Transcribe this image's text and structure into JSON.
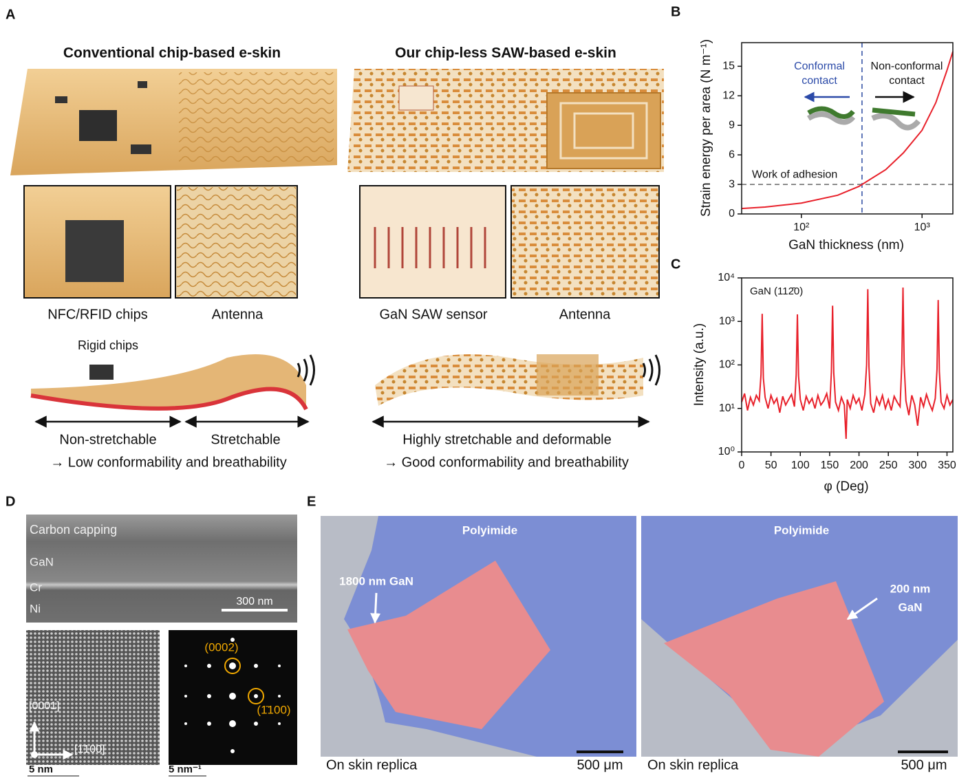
{
  "panel_a": {
    "label": "A",
    "left_title": "Conventional chip-based e-skin",
    "right_title": "Our chip-less SAW-based e-skin",
    "insets": [
      "NFC/RFID chips",
      "Antenna",
      "GaN SAW sensor",
      "Antenna"
    ],
    "rigid_chips": "Rigid chips",
    "left_span": [
      "Non-stretchable",
      "Stretchable"
    ],
    "left_note": "→ Low conformability and breathability",
    "right_span": "Highly stretchable and deformable",
    "right_note": "→ Good conformability and breathability"
  },
  "panel_d": {
    "label": "D",
    "layers": [
      "Carbon capping",
      "GaN",
      "Cr",
      "Ni"
    ],
    "tem_scale": "300 nm",
    "directions": [
      "[0001]",
      "[1̄100]"
    ],
    "hrtem_scale": "5 nm",
    "spots": [
      "(0002)",
      "(1̄100)"
    ],
    "diffraction_scale": "5 nm⁻¹"
  },
  "panel_e": {
    "label": "E",
    "images": [
      {
        "region": "Polyimide",
        "gan": [
          "1800 nm GaN"
        ],
        "substrate": "On skin replica",
        "scale": "500 μm"
      },
      {
        "region": "Polyimide",
        "gan": [
          "200 nm",
          "GaN"
        ],
        "substrate": "On skin replica",
        "scale": "500 μm"
      }
    ]
  },
  "chart_data": [
    {
      "type": "line",
      "label": "B",
      "x_label": "GaN thickness (nm)",
      "y_label": "Strain energy per area (N m⁻¹)",
      "xlog": true,
      "ylog": false,
      "xlim": [
        32,
        1800
      ],
      "ylim": [
        0,
        17.4
      ],
      "xticks": [
        {
          "value": 100,
          "label": "10²"
        },
        {
          "value": 1000,
          "label": "10³"
        }
      ],
      "yticks": [
        0,
        3,
        6,
        9,
        12,
        15
      ],
      "x": [
        32,
        50,
        100,
        200,
        300,
        500,
        700,
        1000,
        1300,
        1600,
        1800
      ],
      "values": [
        0.55,
        0.7,
        1.1,
        1.9,
        2.8,
        4.5,
        6.2,
        8.5,
        11.3,
        14.5,
        16.5
      ],
      "color": "#e8202a",
      "hlines": [
        {
          "value": 3,
          "label": "Work of adhesion",
          "color": "#666666"
        }
      ],
      "vlines": [
        {
          "value": 318,
          "color": "#2a4aa0"
        }
      ],
      "annotations": [
        {
          "text": [
            "Conformal",
            "contact"
          ],
          "color": "#2b4aa8"
        },
        {
          "text": [
            "Non-conformal",
            "contact"
          ],
          "color": "#111111"
        }
      ]
    },
    {
      "type": "line",
      "label": "C",
      "x_label": "φ (Deg)",
      "y_label": "Intensity (a.u.)",
      "legend": "GaN (112̄0)",
      "xlog": false,
      "ylog": true,
      "xlim": [
        0,
        360
      ],
      "ylim": [
        1,
        10000
      ],
      "xticks": [
        0,
        50,
        100,
        150,
        200,
        250,
        300,
        350
      ],
      "yticks": [
        {
          "value": 1,
          "label": "10⁰"
        },
        {
          "value": 10,
          "label": "10¹"
        },
        {
          "value": 100,
          "label": "10²"
        },
        {
          "value": 1000,
          "label": "10³"
        },
        {
          "value": 10000,
          "label": "10⁴"
        }
      ],
      "x": [
        0,
        5,
        10,
        15,
        20,
        25,
        30,
        33,
        35,
        37,
        40,
        45,
        50,
        55,
        60,
        65,
        70,
        75,
        80,
        85,
        90,
        93,
        95,
        97,
        100,
        105,
        110,
        115,
        120,
        125,
        130,
        135,
        140,
        145,
        150,
        153,
        155,
        157,
        160,
        165,
        170,
        175,
        178,
        180,
        185,
        190,
        195,
        200,
        205,
        210,
        213,
        215,
        217,
        220,
        225,
        230,
        235,
        240,
        245,
        250,
        255,
        260,
        265,
        270,
        273,
        275,
        277,
        280,
        285,
        290,
        295,
        300,
        305,
        310,
        315,
        320,
        325,
        330,
        333,
        335,
        337,
        340,
        345,
        350,
        355,
        360
      ],
      "values": [
        14,
        22,
        9,
        18,
        12,
        20,
        15,
        60,
        1500,
        50,
        18,
        10,
        20,
        13,
        17,
        8,
        19,
        12,
        16,
        21,
        11,
        60,
        1450,
        55,
        16,
        9,
        19,
        13,
        17,
        10,
        20,
        12,
        15,
        22,
        10,
        70,
        2300,
        65,
        14,
        9,
        18,
        12,
        2,
        16,
        10,
        20,
        13,
        17,
        9,
        21,
        100,
        5500,
        90,
        13,
        8,
        18,
        12,
        20,
        10,
        16,
        9,
        19,
        14,
        11,
        110,
        6000,
        100,
        15,
        7,
        20,
        12,
        4,
        18,
        11,
        21,
        13,
        9,
        17,
        80,
        3100,
        70,
        14,
        10,
        20,
        12,
        16
      ],
      "color": "#e8202a"
    }
  ]
}
